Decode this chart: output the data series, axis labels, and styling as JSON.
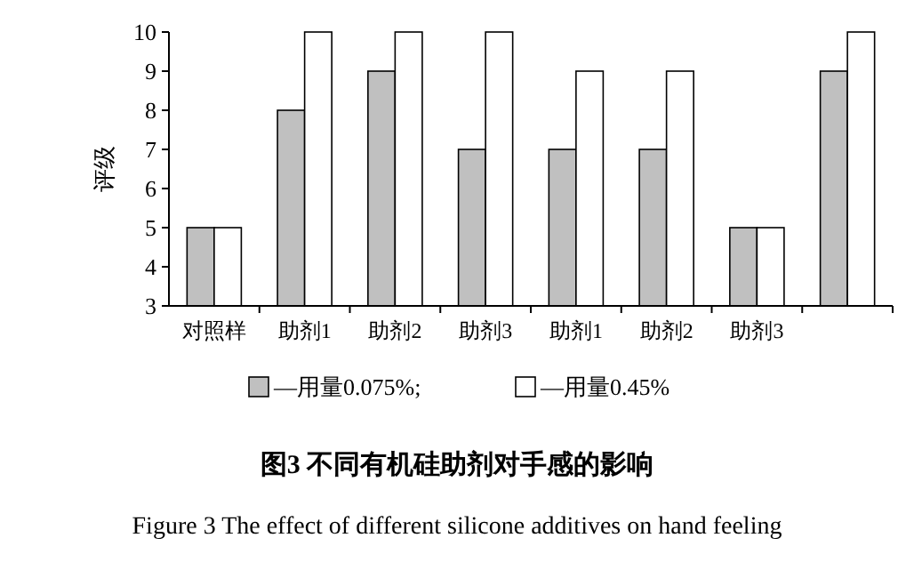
{
  "chart_data": {
    "type": "bar",
    "title": "图3  不同有机硅助剂对手感的影响",
    "subtitle": "Figure 3  The effect of different silicone additives on hand feeling",
    "ylabel": "评级",
    "categories": [
      "对照样",
      "助剂1",
      "助剂2",
      "助剂3",
      "助剂1",
      "助剂2",
      "助剂3",
      null
    ],
    "series": [
      {
        "name": "—用量0.075%;",
        "color": "#c0c0c0",
        "values": [
          5,
          8,
          9,
          7,
          7,
          7,
          5,
          9
        ]
      },
      {
        "name": "—用量0.45%",
        "color": "#ffffff",
        "values": [
          5,
          10,
          10,
          10,
          9,
          9,
          5,
          10
        ]
      }
    ],
    "ylim": [
      3,
      10
    ],
    "yticks": [
      3,
      4,
      5,
      6,
      7,
      8,
      9,
      10
    ],
    "grid": false,
    "legend": "bottom"
  }
}
